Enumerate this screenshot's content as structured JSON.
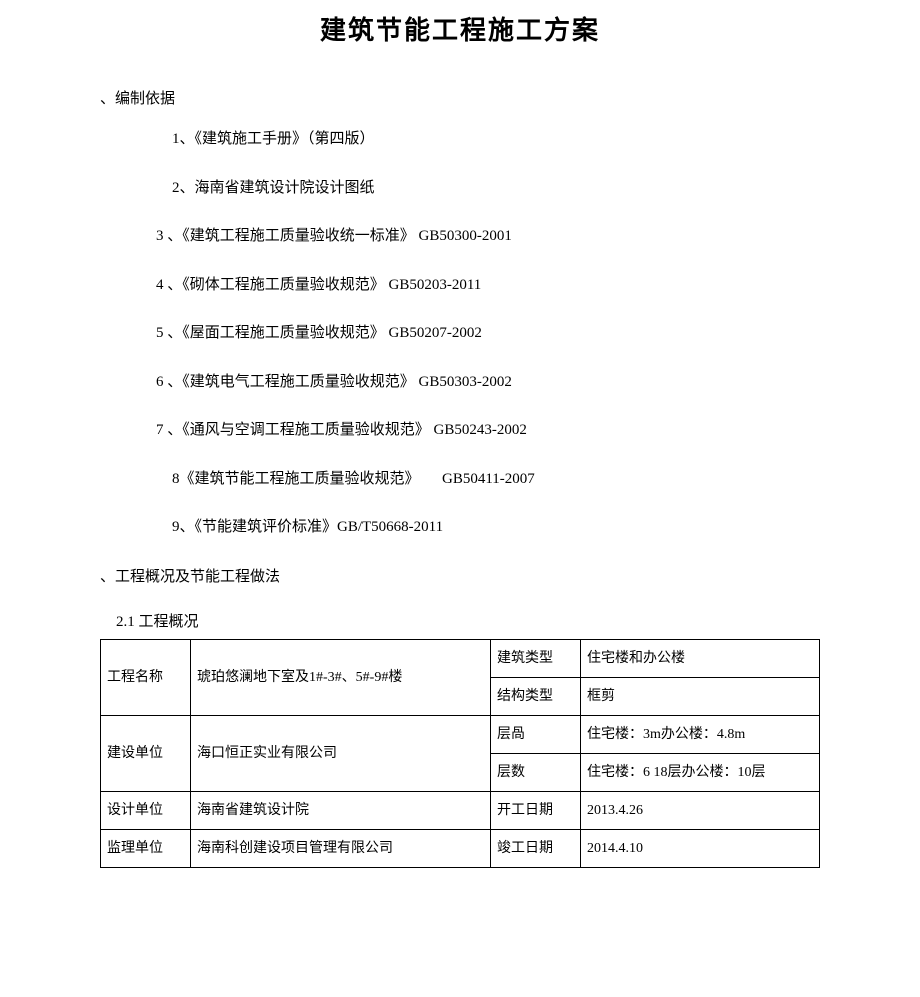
{
  "title": "建筑节能工程施工方案",
  "section1": {
    "heading": "、编制依据",
    "items": [
      "1、《建筑施工手册》（第四版）",
      "2、海南省建筑设计院设计图纸",
      "3 、《建筑工程施工质量验收统一标准》 GB50300-2001",
      "4 、《砌体工程施工质量验收规范》 GB50203-2011",
      "5 、《屋面工程施工质量验收规范》 GB50207-2002",
      "6 、《建筑电气工程施工质量验收规范》 GB50303-2002",
      "7 、《通风与空调工程施工质量验收规范》 GB50243-2002",
      "8《建筑节能工程施工质量验收规范》　　GB50411-2007",
      "9、《节能建筑评价标准》GB/T50668-2011"
    ]
  },
  "section2": {
    "heading": "、工程概况及节能工程做法",
    "subheading": "2.1 工程概况"
  },
  "table": {
    "rows": [
      {
        "c1": "工程名称",
        "c2": "琥珀悠澜地下室及1#-3#、5#-9#楼",
        "c3": "建筑类型",
        "c4": "住宅楼和办公楼",
        "rowspan12": 2
      },
      {
        "c3": "结构类型",
        "c4": "框剪"
      },
      {
        "c1": "建设单位",
        "c2": "海口恒正实业有限公司",
        "c3": "层咼",
        "c4": "住宅楼：3m办公楼：4.8m",
        "rowspan12": 2
      },
      {
        "c3": "层数",
        "c4": "住宅楼：6 18层办公楼：10层"
      },
      {
        "c1": "设计单位",
        "c2": "海南省建筑设计院",
        "c3": "开工日期",
        "c4": "2013.4.26"
      },
      {
        "c1": "监理单位",
        "c2": "海南科创建设项目管理有限公司",
        "c3": "竣工日期",
        "c4": "2014.4.10"
      }
    ]
  },
  "colors": {
    "text": "#000000",
    "bg": "#ffffff",
    "border": "#000000"
  }
}
